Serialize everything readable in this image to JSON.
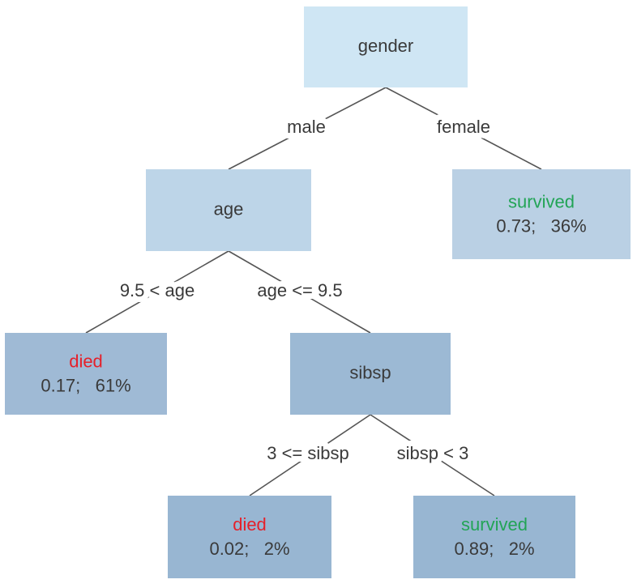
{
  "nodes": [
    {
      "label": "gender"
    },
    {
      "label": "age"
    },
    {
      "outcome": "survived",
      "stats": "0.73;   36%"
    },
    {
      "outcome": "died",
      "stats": "0.17;   61%"
    },
    {
      "label": "sibsp"
    },
    {
      "outcome": "died",
      "stats": "0.02;   2%"
    },
    {
      "outcome": "survived",
      "stats": "0.89;   2%"
    }
  ],
  "edges": [
    {
      "label": "male"
    },
    {
      "label": "female"
    },
    {
      "label": "9.5 < age"
    },
    {
      "label": "age <= 9.5"
    },
    {
      "label": "3 <= sibsp"
    },
    {
      "label": "sibsp < 3"
    }
  ]
}
